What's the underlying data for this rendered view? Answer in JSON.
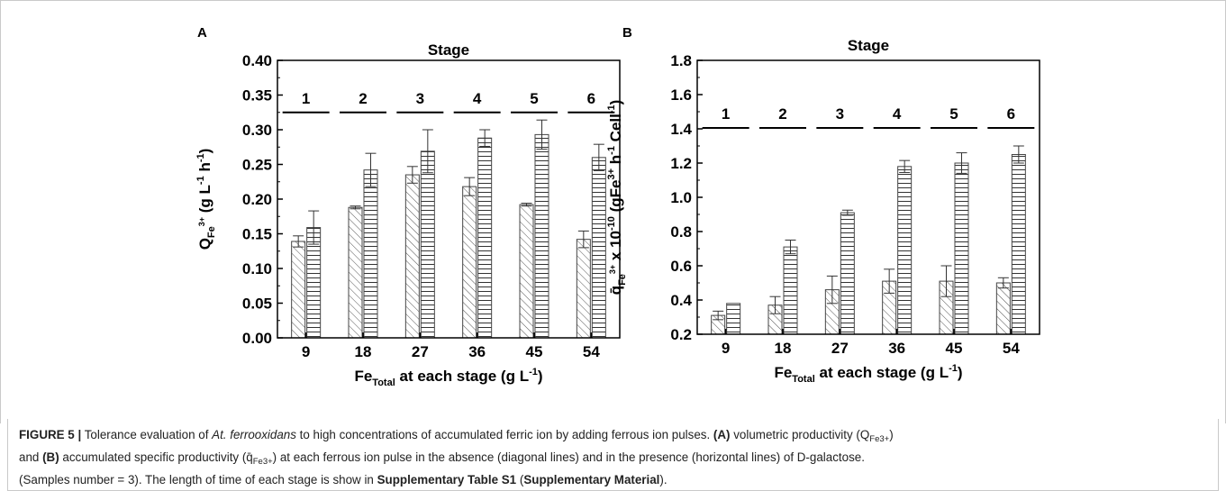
{
  "figure": {
    "caption": {
      "label": "FIGURE 5 |",
      "t1": " Tolerance evaluation of ",
      "organism": "At. ferrooxidans",
      "t2": " to high concentrations of accumulated ferric ion by adding ferrous ion pulses. ",
      "a_label": "(A)",
      "t3": " volumetric productivity (Q",
      "sub1": "Fe3+",
      "t4": ")",
      "t5": "and ",
      "b_label": "(B)",
      "t6": " accumulated specific productivity (",
      "qbar": "q̄",
      "sub2": "Fe3+",
      "t7": ") at each ferrous ion pulse in the absence (diagonal lines) and in the presence (horizontal lines) of D-galactose.",
      "t8": "(Samples number = 3). The length of time of each stage is show in ",
      "supp_table": "Supplementary Table S1",
      "t9": " (",
      "supp_mat": "Supplementary Material",
      "t10": ")."
    }
  },
  "chart_data": [
    {
      "panel": "A",
      "type": "bar",
      "top_title": "Stage",
      "stages": [
        "1",
        "2",
        "3",
        "4",
        "5",
        "6"
      ],
      "categories": [
        "9",
        "18",
        "27",
        "36",
        "45",
        "54"
      ],
      "xlabel": {
        "main": "Fe",
        "sub": "Total",
        "rest": " at each stage (g L",
        "sup": "-1",
        "end": ")"
      },
      "ylabel": {
        "main": "Q",
        "sub": "Fe",
        "sup": "3+",
        "rest": "  (g L",
        "sup2": "-1",
        "rest2": " h",
        "sup3": "-1",
        "end": ")"
      },
      "ylim": [
        0.0,
        0.4
      ],
      "yticks": [
        "0.00",
        "0.05",
        "0.10",
        "0.15",
        "0.20",
        "0.25",
        "0.30",
        "0.35",
        "0.40"
      ],
      "stage_line_value": 0.325,
      "series": [
        {
          "pattern": "diagonal",
          "values": [
            0.139,
            0.188,
            0.235,
            0.218,
            0.192,
            0.142
          ],
          "errors": [
            0.008,
            0.002,
            0.012,
            0.013,
            0.002,
            0.012
          ]
        },
        {
          "pattern": "horizontal",
          "values": [
            0.159,
            0.242,
            0.269,
            0.288,
            0.293,
            0.26
          ],
          "errors": [
            0.024,
            0.024,
            0.031,
            0.012,
            0.021,
            0.019
          ]
        }
      ]
    },
    {
      "panel": "B",
      "type": "bar",
      "top_title": "Stage",
      "stages": [
        "1",
        "2",
        "3",
        "4",
        "5",
        "6"
      ],
      "categories": [
        "9",
        "18",
        "27",
        "36",
        "45",
        "54"
      ],
      "xlabel": {
        "main": "Fe",
        "sub": "Total",
        "rest": " at each stage (g L",
        "sup": "-1",
        "end": ")"
      },
      "ylabel": {
        "main": "q̄",
        "sub": "Fe",
        "sup": "3+",
        "rest": " x 10",
        "sup2": "-10",
        "rest2": " (gFe",
        "sup3": "3+",
        "rest3": " h",
        "sup4": "-1",
        "rest4": " Cell",
        "sup5": "-1",
        "end": ")"
      },
      "ylim": [
        0.2,
        1.8
      ],
      "yticks": [
        "0.2",
        "0.4",
        "0.6",
        "0.8",
        "1.0",
        "1.2",
        "1.4",
        "1.6",
        "1.8"
      ],
      "stage_line_value": 1.405,
      "series": [
        {
          "pattern": "diagonal",
          "values": [
            0.31,
            0.37,
            0.46,
            0.51,
            0.51,
            0.5
          ],
          "errors": [
            0.025,
            0.05,
            0.08,
            0.07,
            0.09,
            0.03
          ]
        },
        {
          "pattern": "horizontal",
          "values": [
            0.38,
            0.71,
            0.91,
            1.18,
            1.2,
            1.25
          ],
          "errors": [
            0.0,
            0.04,
            0.015,
            0.035,
            0.06,
            0.05
          ]
        }
      ]
    }
  ]
}
